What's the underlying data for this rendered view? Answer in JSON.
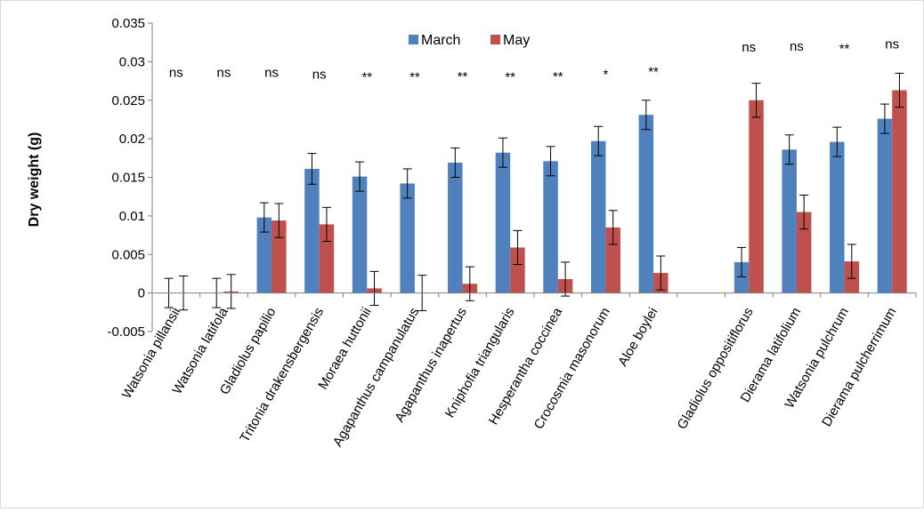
{
  "chart_data": {
    "type": "bar",
    "title": "",
    "xlabel": "",
    "ylabel": "Dry weight (g)",
    "ylim": [
      -0.005,
      0.035
    ],
    "yticks": [
      -0.005,
      0,
      0.005,
      0.01,
      0.015,
      0.02,
      0.025,
      0.03,
      0.035
    ],
    "ytick_labels": [
      "-0.005",
      "0",
      "0.005",
      "0.01",
      "0.015",
      "0.02",
      "0.025",
      "0.03",
      "0.035"
    ],
    "grid": false,
    "legend_position": "top-center",
    "categories": [
      "Watsonia pillansii",
      "Watsonia latifola",
      "Gladiolus papilio",
      "Tritonia drakensbergensis",
      "Moraea huttonii",
      "Agapanthus campanulatus",
      "Agapanthus inapertus",
      "Kniphofia triangularis",
      "Hesperantha coccinea",
      "Crocosmia masonorum",
      "Aloe boylei",
      "",
      "Gladiolus oppositiflorus",
      "Dierama latifolium",
      "Watsonia pulchrum",
      "Dierama pulcherrimum"
    ],
    "series": [
      {
        "name": "March",
        "color": "#4f81bd",
        "values": [
          0,
          0,
          0.0098,
          0.0161,
          0.0151,
          0.0142,
          0.0169,
          0.0182,
          0.0171,
          0.0197,
          0.0231,
          null,
          0.004,
          0.0186,
          0.0196,
          0.0226
        ],
        "errors": [
          0.0019,
          0.0019,
          0.0019,
          0.002,
          0.0019,
          0.0019,
          0.0019,
          0.0019,
          0.0019,
          0.0019,
          0.0019,
          null,
          0.0019,
          0.0019,
          0.0019,
          0.0019
        ]
      },
      {
        "name": "May",
        "color": "#c0504d",
        "values": [
          0,
          0.0002,
          0.0094,
          0.0089,
          0.0006,
          0,
          0.0012,
          0.0059,
          0.0018,
          0.0085,
          0.0026,
          null,
          0.025,
          0.0105,
          0.0041,
          0.0263
        ],
        "errors": [
          0.0022,
          0.0022,
          0.0022,
          0.0022,
          0.0022,
          0.0023,
          0.0022,
          0.0022,
          0.0022,
          0.0022,
          0.0022,
          null,
          0.0022,
          0.0022,
          0.0022,
          0.0022
        ]
      }
    ],
    "annotations": [
      "ns",
      "ns",
      "ns",
      "ns",
      "**",
      "**",
      "**",
      "**",
      "**",
      "*",
      "**",
      "",
      "ns",
      "ns",
      "**",
      "ns"
    ],
    "annotation_values": [
      0.0286,
      0.0286,
      0.0286,
      0.0284,
      0.028,
      0.028,
      0.0281,
      0.028,
      0.0281,
      0.0284,
      0.0287,
      null,
      0.0319,
      0.032,
      0.0317,
      0.0323
    ]
  }
}
